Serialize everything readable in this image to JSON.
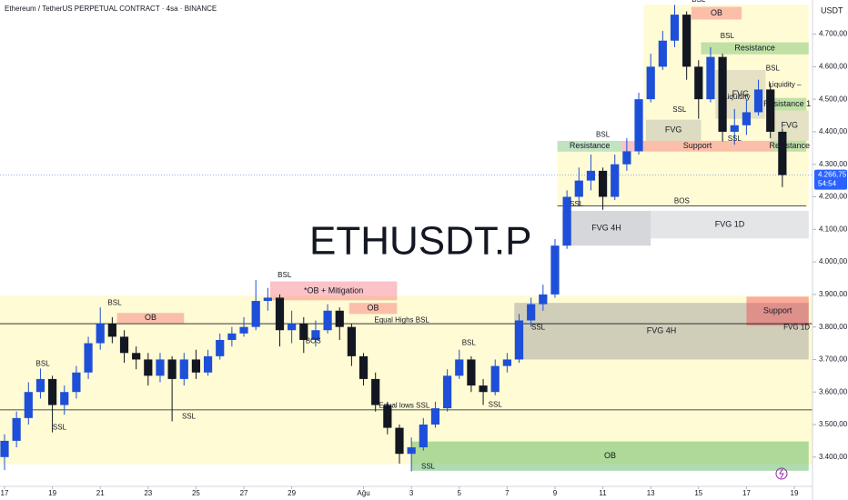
{
  "chart_data": {
    "type": "candlestick",
    "title": "Ethereum / TetherUS PERPETUAL CONTRACT · 4sa · BINANCE",
    "watermark": "ETHUSDT.P",
    "currency": "USDT",
    "up_color": "#1e4fd8",
    "down_color": "#131722",
    "grid": false,
    "xlim": [
      -0.19,
      33.76
    ],
    "ylim": [
      3310,
      4805
    ],
    "xticks": [
      {
        "value": 0,
        "label": "17"
      },
      {
        "value": 2,
        "label": "19"
      },
      {
        "value": 4,
        "label": "21"
      },
      {
        "value": 6,
        "label": "23"
      },
      {
        "value": 8,
        "label": "25"
      },
      {
        "value": 10,
        "label": "27"
      },
      {
        "value": 12,
        "label": "29"
      },
      {
        "value": 15,
        "label": "Ağu"
      },
      {
        "value": 17,
        "label": "3"
      },
      {
        "value": 19,
        "label": "5"
      },
      {
        "value": 21,
        "label": "7"
      },
      {
        "value": 23,
        "label": "9"
      },
      {
        "value": 25,
        "label": "11"
      },
      {
        "value": 27,
        "label": "13"
      },
      {
        "value": 29,
        "label": "15"
      },
      {
        "value": 31,
        "label": "17"
      },
      {
        "value": 33,
        "label": "19"
      }
    ],
    "yticks": [
      {
        "value": 3400,
        "label": "3.400,00"
      },
      {
        "value": 3500,
        "label": "3.500,00"
      },
      {
        "value": 3600,
        "label": "3.600,00"
      },
      {
        "value": 3700,
        "label": "3.700,00"
      },
      {
        "value": 3800,
        "label": "3.800,00"
      },
      {
        "value": 3900,
        "label": "3.900,00"
      },
      {
        "value": 4000,
        "label": "4.000,00"
      },
      {
        "value": 4100,
        "label": "4.100,00"
      },
      {
        "value": 4200,
        "label": "4.200,00"
      },
      {
        "value": 4300,
        "label": "4.300,00"
      },
      {
        "value": 4400,
        "label": "4.400,00"
      },
      {
        "value": 4500,
        "label": "4.500,00"
      },
      {
        "value": 4600,
        "label": "4.600,00"
      },
      {
        "value": 4700,
        "label": "4.700,00"
      }
    ],
    "last_price": {
      "value": 4266.75,
      "label": "4.266,75"
    },
    "countdown": "54:54",
    "x": [
      0,
      0.5,
      1,
      1.5,
      2,
      2.5,
      3,
      3.5,
      4,
      4.5,
      5,
      5.5,
      6,
      6.5,
      7,
      7.5,
      8,
      8.5,
      9,
      9.5,
      10,
      10.5,
      11,
      11.5,
      12,
      12.5,
      13,
      13.5,
      14,
      14.5,
      15,
      15.5,
      16,
      16.5,
      17,
      17.5,
      18,
      18.5,
      19,
      19.5,
      20,
      20.5,
      21,
      21.5,
      22,
      22.5,
      23,
      23.5,
      24,
      24.5,
      25,
      25.5,
      26,
      26.5,
      27,
      27.5,
      28,
      28.5,
      29,
      29.5,
      30,
      30.5,
      31,
      31.5,
      32,
      32.5
    ],
    "ohlc": [
      [
        3400,
        3470,
        3360,
        3450
      ],
      [
        3450,
        3540,
        3430,
        3520
      ],
      [
        3520,
        3630,
        3500,
        3600
      ],
      [
        3600,
        3672,
        3580,
        3640
      ],
      [
        3640,
        3650,
        3476,
        3560
      ],
      [
        3560,
        3620,
        3530,
        3600
      ],
      [
        3600,
        3680,
        3580,
        3660
      ],
      [
        3660,
        3770,
        3640,
        3750
      ],
      [
        3750,
        3860,
        3730,
        3810
      ],
      [
        3810,
        3830,
        3750,
        3770
      ],
      [
        3770,
        3790,
        3690,
        3720
      ],
      [
        3720,
        3740,
        3670,
        3700
      ],
      [
        3700,
        3720,
        3620,
        3650
      ],
      [
        3650,
        3720,
        3630,
        3700
      ],
      [
        3700,
        3710,
        3510,
        3640
      ],
      [
        3640,
        3720,
        3620,
        3700
      ],
      [
        3700,
        3730,
        3640,
        3660
      ],
      [
        3660,
        3730,
        3650,
        3710
      ],
      [
        3710,
        3780,
        3700,
        3760
      ],
      [
        3760,
        3800,
        3740,
        3780
      ],
      [
        3780,
        3830,
        3770,
        3800
      ],
      [
        3800,
        3944,
        3790,
        3880
      ],
      [
        3880,
        3920,
        3850,
        3890
      ],
      [
        3890,
        3900,
        3740,
        3790
      ],
      [
        3790,
        3850,
        3750,
        3810
      ],
      [
        3810,
        3830,
        3720,
        3760
      ],
      [
        3760,
        3820,
        3740,
        3790
      ],
      [
        3790,
        3870,
        3780,
        3850
      ],
      [
        3850,
        3860,
        3760,
        3800
      ],
      [
        3800,
        3810,
        3680,
        3710
      ],
      [
        3710,
        3720,
        3620,
        3640
      ],
      [
        3640,
        3660,
        3540,
        3560
      ],
      [
        3560,
        3570,
        3470,
        3490
      ],
      [
        3490,
        3500,
        3380,
        3410
      ],
      [
        3410,
        3460,
        3356,
        3430
      ],
      [
        3430,
        3520,
        3420,
        3500
      ],
      [
        3500,
        3570,
        3490,
        3550
      ],
      [
        3550,
        3670,
        3540,
        3650
      ],
      [
        3650,
        3730,
        3640,
        3700
      ],
      [
        3700,
        3710,
        3600,
        3620
      ],
      [
        3620,
        3640,
        3560,
        3600
      ],
      [
        3600,
        3700,
        3590,
        3680
      ],
      [
        3680,
        3720,
        3660,
        3700
      ],
      [
        3700,
        3840,
        3690,
        3820
      ],
      [
        3820,
        3890,
        3800,
        3870
      ],
      [
        3870,
        3930,
        3850,
        3900
      ],
      [
        3900,
        4070,
        3890,
        4050
      ],
      [
        4050,
        4220,
        4040,
        4200
      ],
      [
        4200,
        4290,
        4170,
        4250
      ],
      [
        4250,
        4330,
        4220,
        4280
      ],
      [
        4280,
        4290,
        4160,
        4200
      ],
      [
        4200,
        4330,
        4190,
        4300
      ],
      [
        4300,
        4380,
        4280,
        4340
      ],
      [
        4340,
        4520,
        4330,
        4500
      ],
      [
        4500,
        4640,
        4490,
        4600
      ],
      [
        4600,
        4710,
        4590,
        4680
      ],
      [
        4680,
        4790,
        4660,
        4760
      ],
      [
        4760,
        4770,
        4560,
        4600
      ],
      [
        4600,
        4620,
        4440,
        4500
      ],
      [
        4500,
        4660,
        4490,
        4630
      ],
      [
        4630,
        4640,
        4370,
        4400
      ],
      [
        4400,
        4470,
        4360,
        4420
      ],
      [
        4420,
        4500,
        4390,
        4460
      ],
      [
        4460,
        4560,
        4450,
        4530
      ],
      [
        4530,
        4550,
        4380,
        4400
      ],
      [
        4400,
        4410,
        4230,
        4267
      ]
    ],
    "zones": [
      {
        "x": [
          -0.19,
          33.76
        ],
        "y": [
          3378,
          3896
        ],
        "color": "rgba(255,235,59,0.22)"
      },
      {
        "x": [
          23.1,
          33.6
        ],
        "y": [
          4170,
          4340
        ],
        "color": "rgba(255,235,59,0.22)"
      },
      {
        "x": [
          26.7,
          33.6
        ],
        "y": [
          4340,
          4790
        ],
        "color": "rgba(255,235,59,0.22)"
      },
      {
        "label": "FVG 4H",
        "x": [
          21.3,
          33.6
        ],
        "y": [
          3700,
          3874
        ],
        "color": "rgba(120,123,134,0.35)"
      },
      {
        "label": "FVG 4H",
        "x": [
          23.3,
          27.0
        ],
        "y": [
          4050,
          4157
        ],
        "color": "rgba(120,123,134,0.3)"
      },
      {
        "label": "FVG 1D",
        "x": [
          27.0,
          33.6
        ],
        "y": [
          4072,
          4157
        ],
        "color": "rgba(120,123,134,0.2)"
      },
      {
        "label": "FVG",
        "x": [
          26.8,
          29.1
        ],
        "y": [
          4372,
          4437
        ],
        "color": "rgba(120,123,134,0.25)"
      },
      {
        "label": "FVG",
        "x": [
          29.7,
          31.8
        ],
        "y": [
          4440,
          4590
        ],
        "color": "rgba(120,123,134,0.2)"
      },
      {
        "label": "FVG",
        "x": [
          32.0,
          33.6
        ],
        "y": [
          4372,
          4465
        ],
        "color": "rgba(120,123,134,0.2)"
      },
      {
        "label": "Resistance",
        "x": [
          29.1,
          33.6
        ],
        "y": [
          4638,
          4675
        ],
        "color": "rgba(76,175,80,0.35)"
      },
      {
        "label": "Resistance",
        "x": [
          23.1,
          25.8
        ],
        "y": [
          4339,
          4372
        ],
        "color": "rgba(76,175,80,0.35)"
      },
      {
        "label": "Support",
        "x": [
          25.8,
          32.1
        ],
        "y": [
          4339,
          4372
        ],
        "color": "rgba(242,54,69,0.3)"
      },
      {
        "label": "Resistance 1",
        "x": [
          31.9,
          33.5
        ],
        "y": [
          4465,
          4504
        ],
        "color": "rgba(76,175,80,0.35)"
      },
      {
        "label": "Resistance",
        "x": [
          32.1,
          33.5
        ],
        "y": [
          4339,
          4372
        ],
        "color": "rgba(76,175,80,0.35)"
      },
      {
        "label": "OB",
        "x": [
          28.7,
          30.8
        ],
        "y": [
          4745,
          4784
        ],
        "color": "rgba(242,54,69,0.3)"
      },
      {
        "label": "*OB + Mitigation",
        "x": [
          11.1,
          16.4
        ],
        "y": [
          3882,
          3940
        ],
        "color": "rgba(242,54,69,0.3)"
      },
      {
        "label": "OB",
        "x": [
          4.7,
          7.5
        ],
        "y": [
          3812,
          3843
        ],
        "color": "rgba(242,54,69,0.3)"
      },
      {
        "label": "OB",
        "x": [
          14.4,
          16.4
        ],
        "y": [
          3840,
          3874
        ],
        "color": "rgba(242,54,69,0.3)"
      },
      {
        "label": "Support",
        "x": [
          31.0,
          33.6
        ],
        "y": [
          3804,
          3893
        ],
        "color": "rgba(242,54,69,0.4)"
      },
      {
        "label": "OB",
        "x": [
          17.0,
          33.6
        ],
        "y": [
          3358,
          3448
        ],
        "color": "rgba(76,175,80,0.45)"
      }
    ],
    "levels": [
      {
        "price": 3810,
        "x": [
          -0.19,
          33.76
        ]
      },
      {
        "price": 3545,
        "x": [
          -0.19,
          33.76
        ]
      },
      {
        "price": 4172,
        "x": [
          23.1,
          33.5
        ]
      }
    ],
    "annotations": [
      {
        "text": "BSL",
        "x": 4.6,
        "y": 3860
      },
      {
        "text": "BSL",
        "x": 1.6,
        "y": 3672
      },
      {
        "text": "SSL",
        "x": 2.3,
        "y": 3476
      },
      {
        "text": "SSL",
        "x": 7.7,
        "y": 3510
      },
      {
        "text": "BSL",
        "x": 11.7,
        "y": 3944
      },
      {
        "text": "BOS",
        "x": 12.9,
        "y": 3742
      },
      {
        "text": "SSL",
        "x": 17.7,
        "y": 3356
      },
      {
        "text": "BSL",
        "x": 19.4,
        "y": 3737
      },
      {
        "text": "SSL",
        "x": 20.5,
        "y": 3546
      },
      {
        "text": "SSL",
        "x": 22.3,
        "y": 3784
      },
      {
        "text": "Equal Highs BSL",
        "x": 16.6,
        "y": 3806
      },
      {
        "text": "Equal lows SSL",
        "x": 16.7,
        "y": 3543
      },
      {
        "text": "BOS",
        "x": 28.3,
        "y": 4173
      },
      {
        "text": "SSL",
        "x": 23.9,
        "y": 4162
      },
      {
        "text": "BSL",
        "x": 25.0,
        "y": 4376
      },
      {
        "text": "SSL",
        "x": 28.2,
        "y": 4453
      },
      {
        "text": "BSL",
        "x": 29.0,
        "y": 4792
      },
      {
        "text": "BSL",
        "x": 30.2,
        "y": 4680
      },
      {
        "text": "SSL",
        "x": 30.5,
        "y": 4364
      },
      {
        "text": "BSL",
        "x": 32.1,
        "y": 4580
      },
      {
        "text": "Liquidity",
        "x": 30.6,
        "y": 4493
      },
      {
        "text": "Liquidity –",
        "x": 32.6,
        "y": 4530
      },
      {
        "text": "FVG 1D",
        "x": 33.1,
        "y": 3784
      }
    ]
  }
}
